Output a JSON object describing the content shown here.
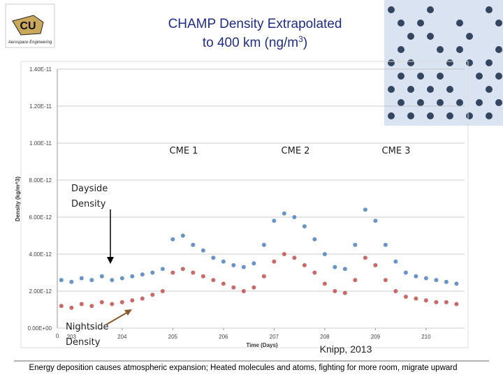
{
  "logo": {
    "initials": "CU",
    "text": "Aerospace Engineering"
  },
  "chart_data": {
    "type": "scatter",
    "title_line1": "CHAMP Density Extrapolated",
    "title_line2": "to 400 km (ng/m",
    "title_superscript": "3",
    "title_close": ")",
    "x_label": "Time (Days)",
    "y_label": "Density (kg/m^3)",
    "x_origin_label": "0",
    "x": [
      202.8,
      203.0,
      203.2,
      203.4,
      203.6,
      203.8,
      204.0,
      204.2,
      204.4,
      204.6,
      204.8,
      205.0,
      205.2,
      205.4,
      205.6,
      205.8,
      206.0,
      206.2,
      206.4,
      206.6,
      206.8,
      207.0,
      207.2,
      207.4,
      207.6,
      207.8,
      208.0,
      208.2,
      208.4,
      208.6,
      208.8,
      209.0,
      209.2,
      209.4,
      209.6,
      209.8,
      210.0,
      210.2,
      210.4,
      210.6
    ],
    "series": [
      {
        "name": "Dayside",
        "color": "#4f81bd",
        "values": [
          2.6e-12,
          2.5e-12,
          2.7e-12,
          2.6e-12,
          2.8e-12,
          2.6e-12,
          2.7e-12,
          2.8e-12,
          2.9e-12,
          3e-12,
          3.2e-12,
          4.8e-12,
          5e-12,
          4.5e-12,
          4.2e-12,
          3.8e-12,
          3.6e-12,
          3.4e-12,
          3.3e-12,
          3.5e-12,
          4.5e-12,
          5.8e-12,
          6.2e-12,
          6e-12,
          5.5e-12,
          4.8e-12,
          4e-12,
          3.3e-12,
          3.2e-12,
          4.5e-12,
          6.4e-12,
          5.8e-12,
          4.5e-12,
          3.6e-12,
          3e-12,
          2.8e-12,
          2.7e-12,
          2.6e-12,
          2.5e-12,
          2.4e-12
        ]
      },
      {
        "name": "Nightside",
        "color": "#c0504d",
        "values": [
          1.2e-12,
          1.1e-12,
          1.3e-12,
          1.2e-12,
          1.4e-12,
          1.3e-12,
          1.4e-12,
          1.5e-12,
          1.6e-12,
          1.8e-12,
          2e-12,
          3e-12,
          3.2e-12,
          3e-12,
          2.8e-12,
          2.6e-12,
          2.4e-12,
          2.2e-12,
          2e-12,
          2.2e-12,
          2.8e-12,
          3.6e-12,
          4e-12,
          3.8e-12,
          3.4e-12,
          3e-12,
          2.4e-12,
          2e-12,
          1.9e-12,
          2.6e-12,
          3.8e-12,
          3.4e-12,
          2.6e-12,
          2e-12,
          1.7e-12,
          1.6e-12,
          1.5e-12,
          1.4e-12,
          1.4e-12,
          1.3e-12
        ]
      }
    ],
    "xlim": [
      202.72,
      210.76
    ],
    "xticks": [
      203,
      204,
      205,
      206,
      207,
      208,
      209,
      210
    ],
    "ylim": [
      0,
      1.4e-11
    ],
    "yticks": [
      {
        "value": 0,
        "label": "0.00E+00"
      },
      {
        "value": 2e-12,
        "label": "2.00E-12"
      },
      {
        "value": 4e-12,
        "label": "4.00E-12"
      },
      {
        "value": 6e-12,
        "label": "6.00E-12"
      },
      {
        "value": 8e-12,
        "label": "8.00E-12"
      },
      {
        "value": 1e-11,
        "label": "1.00E-11"
      },
      {
        "value": 1.2e-11,
        "label": "1.20E-11"
      },
      {
        "value": 1.4e-11,
        "label": "1.40E-11"
      }
    ],
    "grid": true,
    "annotations": {
      "cme1": "CME 1",
      "cme2": "CME 2",
      "cme3": "CME 3",
      "dayside1": "Dayside",
      "dayside2": "Density",
      "nightside1": "Nightside",
      "nightside2": "Density",
      "citation": "Knipp, 2013"
    }
  },
  "caption": "Energy deposition causes atmospheric expansion; Heated  molecules and atoms, fighting  for more room, migrate upward"
}
